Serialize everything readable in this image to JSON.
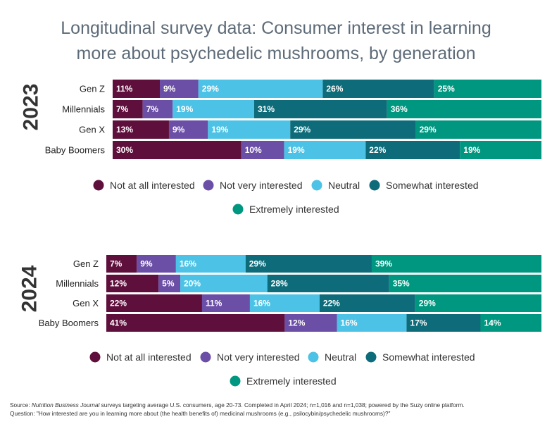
{
  "title_line1": "Longitudinal survey data: Consumer interest in learning",
  "title_line2": "more about psychedelic mushrooms, by generation",
  "legend": [
    {
      "label": "Not at all interested",
      "color": "#5e0f3b"
    },
    {
      "label": "Not very interested",
      "color": "#6b4ea6"
    },
    {
      "label": "Neutral",
      "color": "#4cc3e6"
    },
    {
      "label": "Somewhat interested",
      "color": "#0e6c7a"
    },
    {
      "label": "Extremely interested",
      "color": "#009780"
    }
  ],
  "chart_data": [
    {
      "type": "bar",
      "orientation": "horizontal",
      "stacked": true,
      "title": "2023",
      "categories": [
        "Gen Z",
        "Millennials",
        "Gen X",
        "Baby Boomers"
      ],
      "series": [
        {
          "name": "Not at all interested",
          "values": [
            11,
            7,
            13,
            30
          ]
        },
        {
          "name": "Not very interested",
          "values": [
            9,
            7,
            9,
            10
          ]
        },
        {
          "name": "Neutral",
          "values": [
            29,
            19,
            19,
            19
          ]
        },
        {
          "name": "Somewhat interested",
          "values": [
            26,
            31,
            29,
            22
          ]
        },
        {
          "name": "Extremely interested",
          "values": [
            25,
            36,
            29,
            19
          ]
        }
      ],
      "value_suffix": "%",
      "legend_position": "bottom"
    },
    {
      "type": "bar",
      "orientation": "horizontal",
      "stacked": true,
      "title": "2024",
      "categories": [
        "Gen Z",
        "Millennials",
        "Gen X",
        "Baby Boomers"
      ],
      "series": [
        {
          "name": "Not at all interested",
          "values": [
            7,
            12,
            22,
            41
          ]
        },
        {
          "name": "Not very interested",
          "values": [
            9,
            5,
            11,
            12
          ]
        },
        {
          "name": "Neutral",
          "values": [
            16,
            20,
            16,
            16
          ]
        },
        {
          "name": "Somewhat interested",
          "values": [
            29,
            28,
            22,
            17
          ]
        },
        {
          "name": "Extremely interested",
          "values": [
            39,
            35,
            29,
            14
          ]
        }
      ],
      "value_suffix": "%",
      "legend_position": "bottom"
    }
  ],
  "footer": {
    "source_prefix": "Source: ",
    "source_italic": "Nutrition Business Journal",
    "source_rest": " surveys targeting average U.S. consumers, age 20-73. Completed in April 2024; n=1,016 and n=1,038; powered by the Suzy online platform.",
    "question": "Question: \"How interested are you in learning more about (the health benefits of) medicinal mushrooms (e.g., psilocybin/psychedelic mushrooms)?\""
  }
}
